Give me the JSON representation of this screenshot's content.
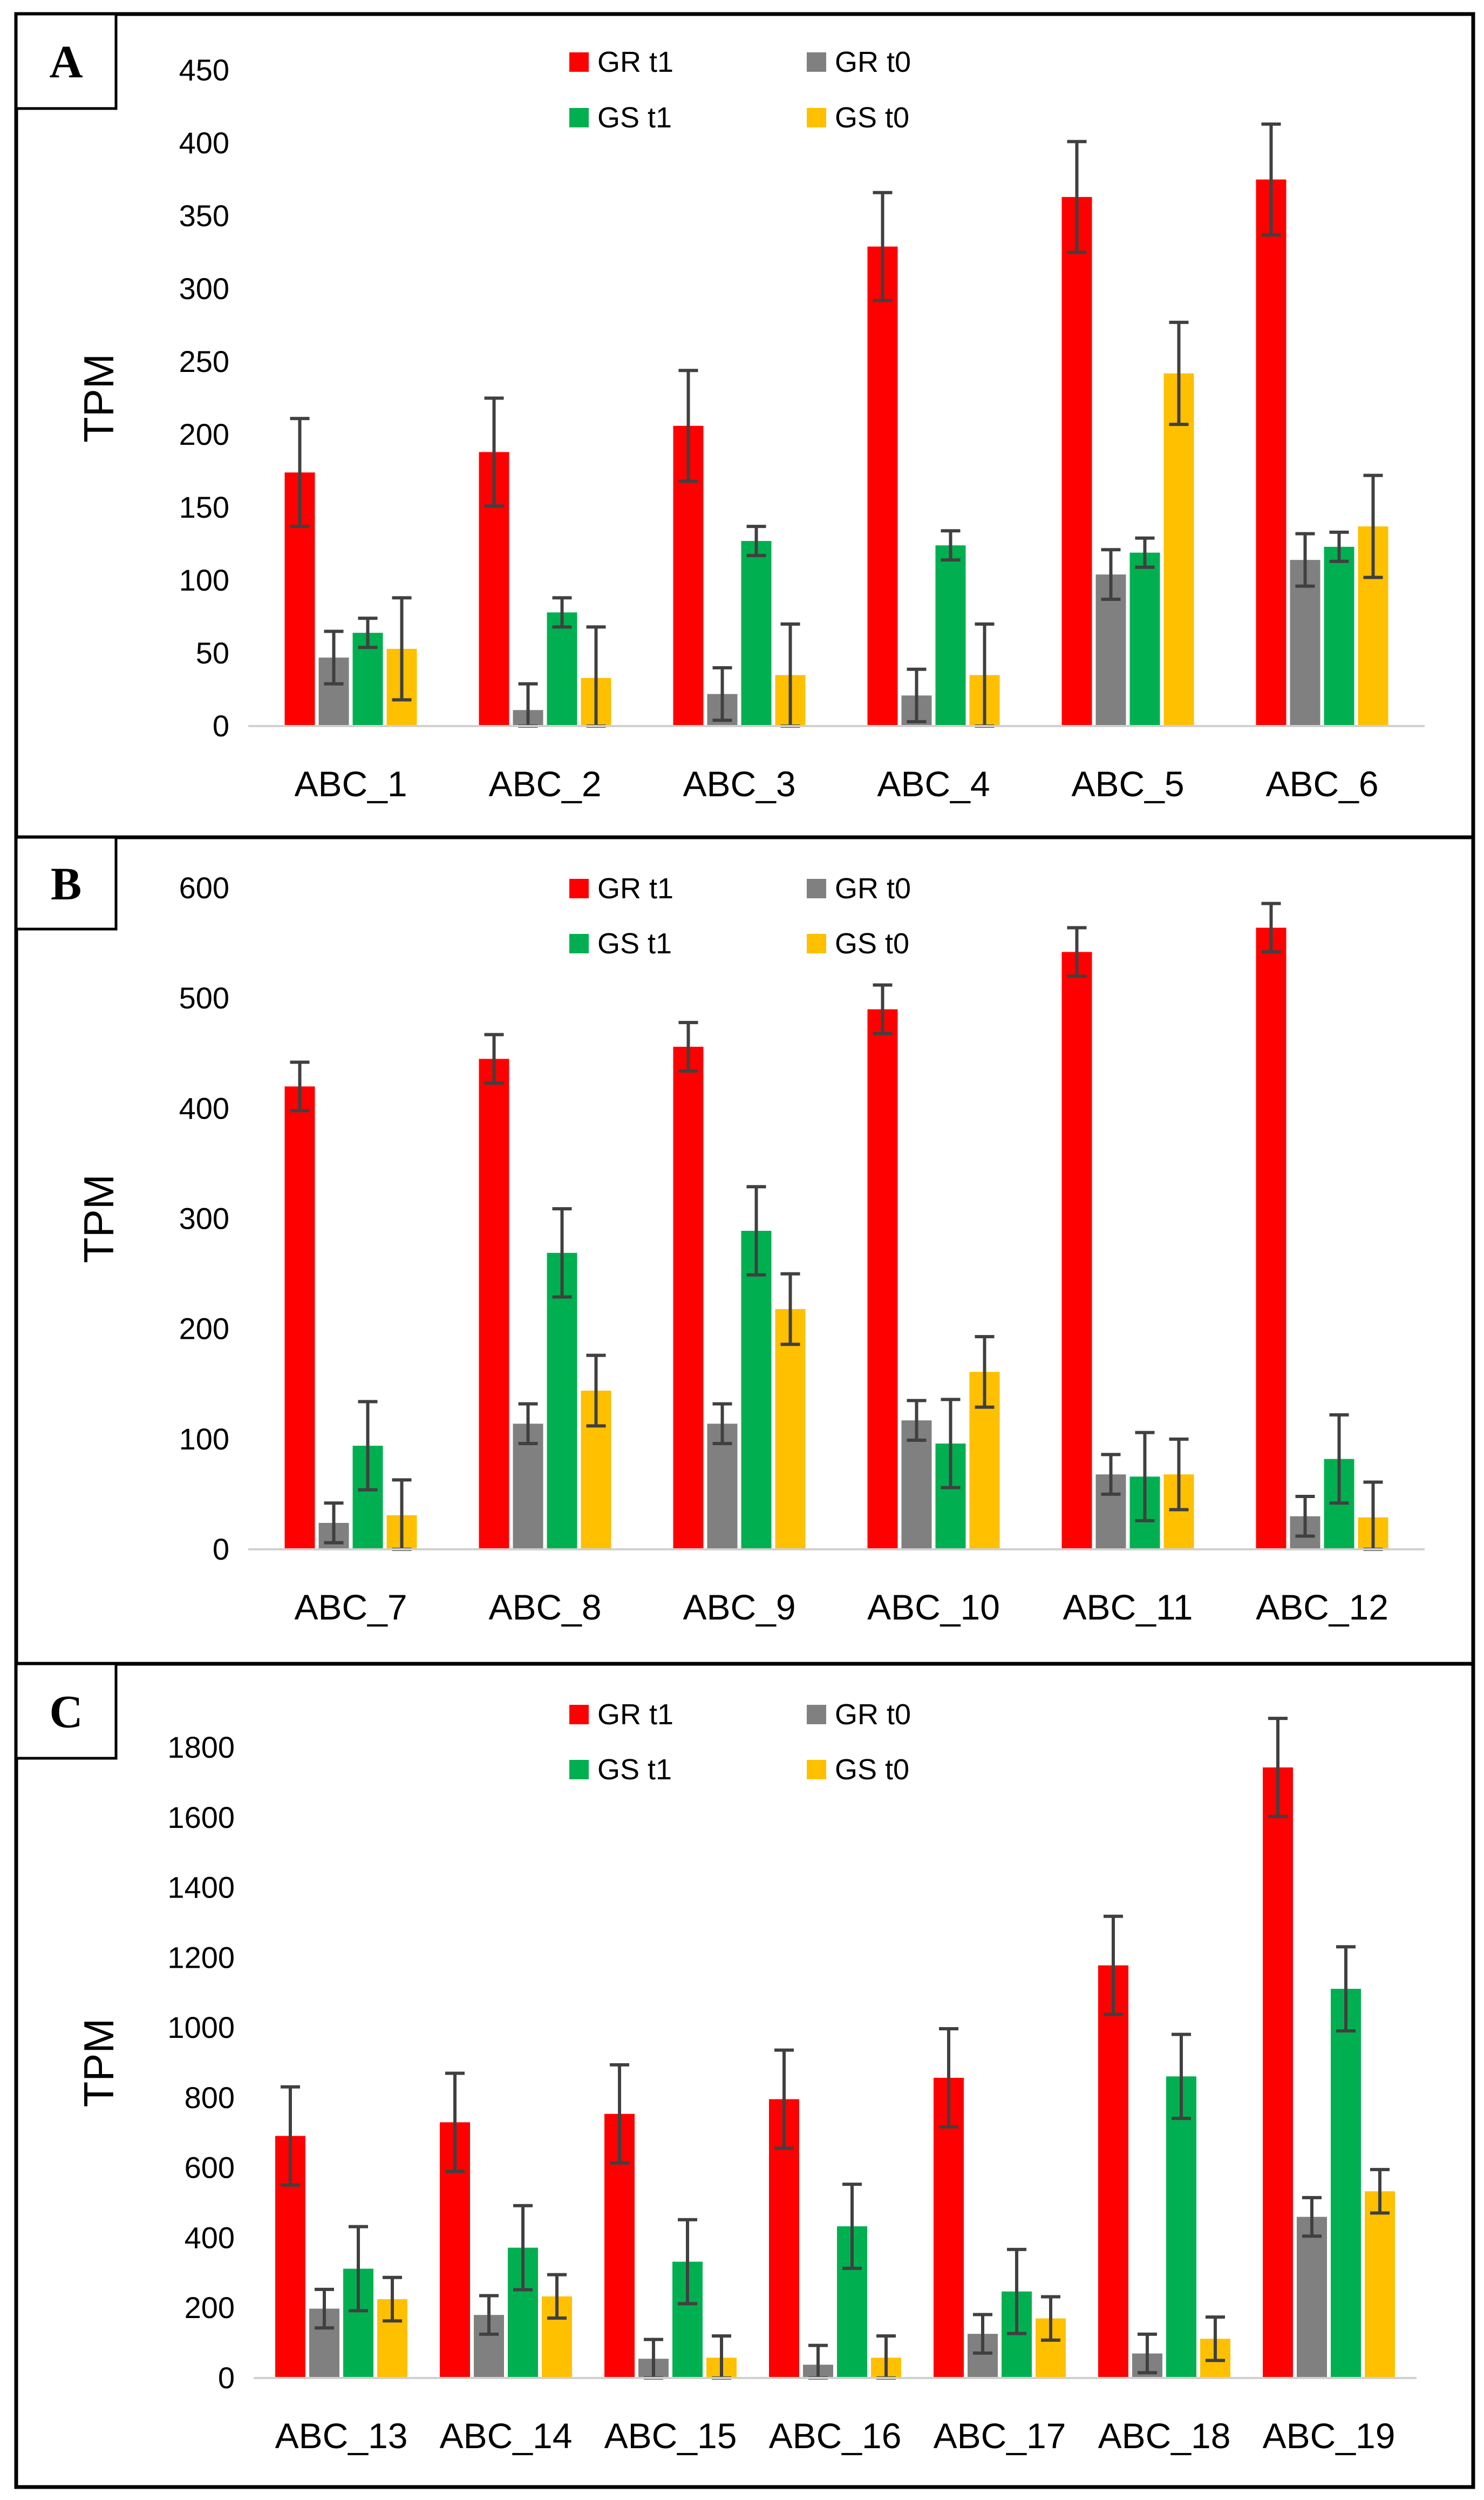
{
  "chart_data": [
    {
      "type": "bar",
      "panel_label": "A",
      "ylabel": "TPM",
      "xlabel": "",
      "ylim": [
        0,
        450
      ],
      "ytick_step": 50,
      "categories": [
        "ABC_1",
        "ABC_2",
        "ABC_3",
        "ABC_4",
        "ABC_5",
        "ABC_6"
      ],
      "series": [
        {
          "name": "GR t1",
          "color": "#ff0000",
          "values": [
            174,
            188,
            206,
            329,
            363,
            375
          ],
          "errors": [
            37,
            37,
            38,
            37,
            38,
            38
          ]
        },
        {
          "name": "GR t0",
          "color": "#808080",
          "values": [
            47,
            11,
            22,
            21,
            104,
            114
          ],
          "errors": [
            18,
            18,
            18,
            18,
            17,
            18
          ]
        },
        {
          "name": "GS t1",
          "color": "#00b050",
          "values": [
            64,
            78,
            127,
            124,
            119,
            123
          ],
          "errors": [
            10,
            10,
            10,
            10,
            10,
            10
          ]
        },
        {
          "name": "GS t0",
          "color": "#ffc000",
          "values": [
            53,
            33,
            35,
            35,
            242,
            137
          ],
          "errors": [
            35,
            35,
            35,
            35,
            35,
            35
          ]
        }
      ],
      "legend_placement": "top-center"
    },
    {
      "type": "bar",
      "panel_label": "B",
      "ylabel": "TPM",
      "xlabel": "",
      "ylim": [
        0,
        600
      ],
      "ytick_step": 100,
      "categories": [
        "ABC_7",
        "ABC_8",
        "ABC_9",
        "ABC_10",
        "ABC_11",
        "ABC_12"
      ],
      "series": [
        {
          "name": "GR t1",
          "color": "#ff0000",
          "values": [
            420,
            445,
            456,
            490,
            542,
            564
          ],
          "errors": [
            22,
            22,
            22,
            22,
            22,
            22
          ]
        },
        {
          "name": "GR t0",
          "color": "#808080",
          "values": [
            24,
            114,
            114,
            117,
            68,
            30
          ],
          "errors": [
            18,
            18,
            18,
            18,
            18,
            18
          ]
        },
        {
          "name": "GS t1",
          "color": "#00b050",
          "values": [
            94,
            269,
            289,
            96,
            66,
            82
          ],
          "errors": [
            40,
            40,
            40,
            40,
            40,
            40
          ]
        },
        {
          "name": "GS t0",
          "color": "#ffc000",
          "values": [
            31,
            144,
            218,
            161,
            68,
            29
          ],
          "errors": [
            32,
            32,
            32,
            32,
            32,
            32
          ]
        }
      ],
      "legend_placement": "top-center"
    },
    {
      "type": "bar",
      "panel_label": "C",
      "ylabel": "TPM",
      "xlabel": "",
      "ylim": [
        0,
        1800
      ],
      "ytick_step": 200,
      "categories": [
        "ABC_13",
        "ABC_14",
        "ABC_15",
        "ABC_16",
        "ABC_17",
        "ABC_18",
        "ABC_19"
      ],
      "series": [
        {
          "name": "GR t1",
          "color": "#ff0000",
          "values": [
            691,
            730,
            754,
            796,
            857,
            1178,
            1743
          ],
          "errors": [
            140,
            140,
            140,
            140,
            140,
            140,
            140
          ]
        },
        {
          "name": "GR t0",
          "color": "#808080",
          "values": [
            198,
            180,
            55,
            38,
            126,
            70,
            460
          ],
          "errors": [
            55,
            55,
            55,
            55,
            55,
            55,
            55
          ]
        },
        {
          "name": "GS t1",
          "color": "#00b050",
          "values": [
            312,
            372,
            332,
            433,
            247,
            861,
            1111
          ],
          "errors": [
            120,
            120,
            120,
            120,
            120,
            120,
            120
          ]
        },
        {
          "name": "GS t0",
          "color": "#ffc000",
          "values": [
            225,
            233,
            58,
            58,
            170,
            112,
            533
          ],
          "errors": [
            62,
            62,
            62,
            62,
            62,
            62,
            62
          ]
        }
      ],
      "legend_placement": "top-center"
    }
  ]
}
